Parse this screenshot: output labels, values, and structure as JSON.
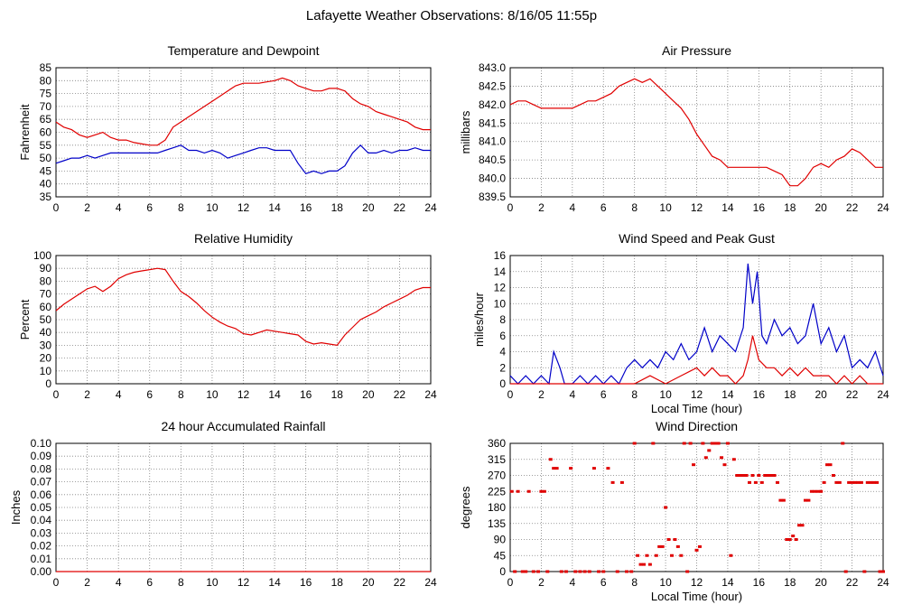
{
  "page_title": "Lafayette Weather Observations: 8/16/05 11:55p",
  "colors": {
    "red": "#e00000",
    "blue": "#0000c8",
    "grid": "#808080",
    "frame": "#000000"
  },
  "x_ticks": [
    "0",
    "2",
    "4",
    "6",
    "8",
    "10",
    "12",
    "14",
    "16",
    "18",
    "20",
    "22",
    "24"
  ],
  "chart_data": [
    {
      "id": "temp",
      "type": "line",
      "title": "Temperature and Dewpoint",
      "xlabel": "",
      "ylabel": "Fahrenheit",
      "xlim": [
        0,
        24
      ],
      "ylim": [
        35,
        85
      ],
      "y_ticks": [
        "35",
        "40",
        "45",
        "50",
        "55",
        "60",
        "65",
        "70",
        "75",
        "80",
        "85"
      ],
      "grid": true,
      "series": [
        {
          "color": "red",
          "x": [
            0,
            0.5,
            1,
            1.5,
            2,
            2.5,
            3,
            3.5,
            4,
            4.5,
            5,
            5.5,
            6,
            6.5,
            7,
            7.5,
            8,
            8.5,
            9,
            9.5,
            10,
            10.5,
            11,
            11.5,
            12,
            12.5,
            13,
            13.5,
            14,
            14.5,
            15,
            15.5,
            16,
            16.5,
            17,
            17.5,
            18,
            18.5,
            19,
            19.5,
            20,
            20.5,
            21,
            21.5,
            22,
            22.5,
            23,
            23.5,
            24
          ],
          "values": [
            64,
            62,
            61,
            59,
            58,
            59,
            60,
            58,
            57,
            57,
            56,
            55.5,
            55,
            55,
            57,
            62,
            64,
            66,
            68,
            70,
            72,
            74,
            76,
            78,
            79,
            79,
            79,
            79.5,
            80,
            81,
            80,
            78,
            77,
            76,
            76,
            77,
            77,
            76,
            73,
            71,
            70,
            68,
            67,
            66,
            65,
            64,
            62,
            61,
            61
          ]
        },
        {
          "color": "blue",
          "x": [
            0,
            0.5,
            1,
            1.5,
            2,
            2.5,
            3,
            3.5,
            4,
            4.5,
            5,
            5.5,
            6,
            6.5,
            7,
            7.5,
            8,
            8.5,
            9,
            9.5,
            10,
            10.5,
            11,
            11.5,
            12,
            12.5,
            13,
            13.5,
            14,
            14.5,
            15,
            15.5,
            16,
            16.5,
            17,
            17.5,
            18,
            18.5,
            19,
            19.5,
            20,
            20.5,
            21,
            21.5,
            22,
            22.5,
            23,
            23.5,
            24
          ],
          "values": [
            48,
            49,
            50,
            50,
            51,
            50,
            51,
            52,
            52,
            52,
            52,
            52,
            52,
            52,
            53,
            54,
            55,
            53,
            53,
            52,
            53,
            52,
            50,
            51,
            52,
            53,
            54,
            54,
            53,
            53,
            53,
            48,
            44,
            45,
            44,
            45,
            45,
            47,
            52,
            55,
            52,
            52,
            53,
            52,
            53,
            53,
            54,
            53,
            53
          ]
        }
      ]
    },
    {
      "id": "pressure",
      "type": "line",
      "title": "Air Pressure",
      "xlabel": "",
      "ylabel": "millibars",
      "xlim": [
        0,
        24
      ],
      "ylim": [
        839.5,
        843.0
      ],
      "y_ticks": [
        "839.5",
        "840.0",
        "840.5",
        "841.0",
        "841.5",
        "842.0",
        "842.5",
        "843.0"
      ],
      "grid": true,
      "series": [
        {
          "color": "red",
          "x": [
            0,
            0.5,
            1,
            1.5,
            2,
            2.5,
            3,
            3.5,
            4,
            4.5,
            5,
            5.5,
            6,
            6.5,
            7,
            7.5,
            8,
            8.5,
            9,
            9.5,
            10,
            10.5,
            11,
            11.5,
            12,
            12.5,
            13,
            13.5,
            14,
            14.5,
            15,
            15.5,
            16,
            16.5,
            17,
            17.5,
            18,
            18.5,
            19,
            19.5,
            20,
            20.5,
            21,
            21.5,
            22,
            22.5,
            23,
            23.5,
            24
          ],
          "values": [
            842.0,
            842.1,
            842.1,
            842.0,
            841.9,
            841.9,
            841.9,
            841.9,
            841.9,
            842.0,
            842.1,
            842.1,
            842.2,
            842.3,
            842.5,
            842.6,
            842.7,
            842.6,
            842.7,
            842.5,
            842.3,
            842.1,
            841.9,
            841.6,
            841.2,
            840.9,
            840.6,
            840.5,
            840.3,
            840.3,
            840.3,
            840.3,
            840.3,
            840.3,
            840.2,
            840.1,
            839.8,
            839.8,
            840.0,
            840.3,
            840.4,
            840.3,
            840.5,
            840.6,
            840.8,
            840.7,
            840.5,
            840.3,
            840.3
          ]
        }
      ]
    },
    {
      "id": "humidity",
      "type": "line",
      "title": "Relative Humidity",
      "xlabel": "",
      "ylabel": "Percent",
      "xlim": [
        0,
        24
      ],
      "ylim": [
        0,
        100
      ],
      "y_ticks": [
        "0",
        "10",
        "20",
        "30",
        "40",
        "50",
        "60",
        "70",
        "80",
        "90",
        "100"
      ],
      "grid": true,
      "series": [
        {
          "color": "red",
          "x": [
            0,
            0.5,
            1,
            1.5,
            2,
            2.5,
            3,
            3.5,
            4,
            4.5,
            5,
            5.5,
            6,
            6.5,
            7,
            7.5,
            8,
            8.5,
            9,
            9.5,
            10,
            10.5,
            11,
            11.5,
            12,
            12.5,
            13,
            13.5,
            14,
            14.5,
            15,
            15.5,
            16,
            16.5,
            17,
            17.5,
            18,
            18.5,
            19,
            19.5,
            20,
            20.5,
            21,
            21.5,
            22,
            22.5,
            23,
            23.5,
            24
          ],
          "values": [
            57,
            62,
            66,
            70,
            74,
            76,
            72,
            76,
            82,
            85,
            87,
            88,
            89,
            90,
            89,
            80,
            72,
            68,
            63,
            57,
            52,
            48,
            45,
            43,
            39,
            38,
            40,
            42,
            41,
            40,
            39,
            38,
            33,
            31,
            32,
            31,
            30,
            38,
            44,
            50,
            53,
            56,
            60,
            63,
            66,
            69,
            73,
            75,
            75
          ]
        }
      ]
    },
    {
      "id": "wind",
      "type": "line",
      "title": "Wind Speed and Peak Gust",
      "xlabel": "Local Time (hour)",
      "ylabel": "miles/hour",
      "xlim": [
        0,
        24
      ],
      "ylim": [
        0,
        16
      ],
      "y_ticks": [
        "0",
        "2",
        "4",
        "6",
        "8",
        "10",
        "12",
        "14",
        "16"
      ],
      "grid": true,
      "series": [
        {
          "color": "blue",
          "x": [
            0,
            0.5,
            1,
            1.5,
            2,
            2.5,
            2.8,
            3.2,
            3.5,
            4,
            4.5,
            5,
            5.5,
            6,
            6.5,
            7,
            7.5,
            8,
            8.5,
            9,
            9.5,
            10,
            10.5,
            11,
            11.5,
            12,
            12.5,
            13,
            13.5,
            14,
            14.5,
            15,
            15.3,
            15.6,
            15.9,
            16.2,
            16.5,
            17,
            17.5,
            18,
            18.5,
            19,
            19.5,
            20,
            20.5,
            21,
            21.5,
            22,
            22.5,
            23,
            23.5,
            24
          ],
          "values": [
            1,
            0,
            1,
            0,
            1,
            0,
            4,
            2,
            0,
            0,
            1,
            0,
            1,
            0,
            1,
            0,
            2,
            3,
            2,
            3,
            2,
            4,
            3,
            5,
            3,
            4,
            7,
            4,
            6,
            5,
            4,
            7,
            15,
            10,
            14,
            6,
            5,
            8,
            6,
            7,
            5,
            6,
            10,
            5,
            7,
            4,
            6,
            2,
            3,
            2,
            4,
            1
          ]
        },
        {
          "color": "red",
          "x": [
            0,
            1,
            2,
            3,
            4,
            5,
            6,
            7,
            8,
            9,
            10,
            11,
            12,
            12.5,
            13,
            13.5,
            14,
            14.5,
            15,
            15.3,
            15.6,
            16,
            16.5,
            17,
            17.5,
            18,
            18.5,
            19,
            19.5,
            20,
            20.5,
            21,
            21.5,
            22,
            22.5,
            23,
            24
          ],
          "values": [
            0,
            0,
            0,
            0,
            0,
            0,
            0,
            0,
            0,
            1,
            0,
            1,
            2,
            1,
            2,
            1,
            1,
            0,
            1,
            3,
            6,
            3,
            2,
            2,
            1,
            2,
            1,
            2,
            1,
            1,
            1,
            0,
            1,
            0,
            1,
            0,
            0
          ]
        }
      ]
    },
    {
      "id": "rain",
      "type": "line",
      "title": "24 hour Accumulated Rainfall",
      "xlabel": "",
      "ylabel": "Inches",
      "xlim": [
        0,
        24
      ],
      "ylim": [
        0,
        0.1
      ],
      "y_ticks": [
        "0.00",
        "0.01",
        "0.02",
        "0.03",
        "0.04",
        "0.05",
        "0.06",
        "0.07",
        "0.08",
        "0.09",
        "0.10"
      ],
      "grid": true,
      "series": [
        {
          "color": "red",
          "x": [
            0,
            24
          ],
          "values": [
            0,
            0
          ]
        }
      ]
    },
    {
      "id": "direction",
      "type": "scatter",
      "title": "Wind Direction",
      "xlabel": "Local Time (hour)",
      "ylabel": "degrees",
      "xlim": [
        0,
        24
      ],
      "ylim": [
        0,
        360
      ],
      "y_ticks": [
        "0",
        "45",
        "90",
        "135",
        "180",
        "225",
        "270",
        "315",
        "360"
      ],
      "grid": true,
      "series": [
        {
          "color": "red",
          "x": [
            0.1,
            0.3,
            0.5,
            0.8,
            1.0,
            1.2,
            1.5,
            1.8,
            2.0,
            2.2,
            2.4,
            2.6,
            2.8,
            3.0,
            3.3,
            3.6,
            3.9,
            4.2,
            4.5,
            4.8,
            5.1,
            5.4,
            5.7,
            6.0,
            6.3,
            6.6,
            6.9,
            7.2,
            7.5,
            7.8,
            8.0,
            8.2,
            8.4,
            8.6,
            8.8,
            9.0,
            9.2,
            9.4,
            9.6,
            9.8,
            10.0,
            10.2,
            10.4,
            10.6,
            10.8,
            11.0,
            11.2,
            11.4,
            11.6,
            11.8,
            12.0,
            12.2,
            12.4,
            12.6,
            12.8,
            13.0,
            13.2,
            13.4,
            13.6,
            13.8,
            14.0,
            14.2,
            14.4,
            14.6,
            14.8,
            15.0,
            15.2,
            15.4,
            15.6,
            15.8,
            16.0,
            16.2,
            16.4,
            16.6,
            16.8,
            17.0,
            17.2,
            17.4,
            17.6,
            17.8,
            18.0,
            18.2,
            18.4,
            18.6,
            18.8,
            19.0,
            19.2,
            19.4,
            19.6,
            19.8,
            20.0,
            20.2,
            20.4,
            20.6,
            20.8,
            21.0,
            21.2,
            21.4,
            21.6,
            21.8,
            22.0,
            22.2,
            22.4,
            22.6,
            22.8,
            23.0,
            23.2,
            23.4,
            23.6,
            23.8,
            24.0
          ],
          "values": [
            225,
            0,
            225,
            0,
            0,
            225,
            0,
            0,
            225,
            225,
            0,
            315,
            290,
            290,
            0,
            0,
            290,
            0,
            0,
            0,
            0,
            290,
            0,
            0,
            290,
            250,
            0,
            250,
            0,
            0,
            360,
            45,
            20,
            20,
            45,
            20,
            360,
            45,
            70,
            70,
            180,
            90,
            45,
            90,
            70,
            45,
            360,
            0,
            360,
            300,
            60,
            70,
            360,
            320,
            340,
            360,
            360,
            360,
            320,
            300,
            360,
            45,
            315,
            270,
            270,
            270,
            270,
            250,
            270,
            250,
            270,
            250,
            270,
            270,
            270,
            270,
            250,
            200,
            200,
            90,
            90,
            100,
            90,
            130,
            130,
            200,
            200,
            225,
            225,
            225,
            225,
            250,
            300,
            300,
            270,
            250,
            250,
            360,
            0,
            250,
            250,
            250,
            250,
            250,
            0,
            250,
            250,
            250,
            250,
            0,
            0
          ]
        }
      ]
    }
  ]
}
